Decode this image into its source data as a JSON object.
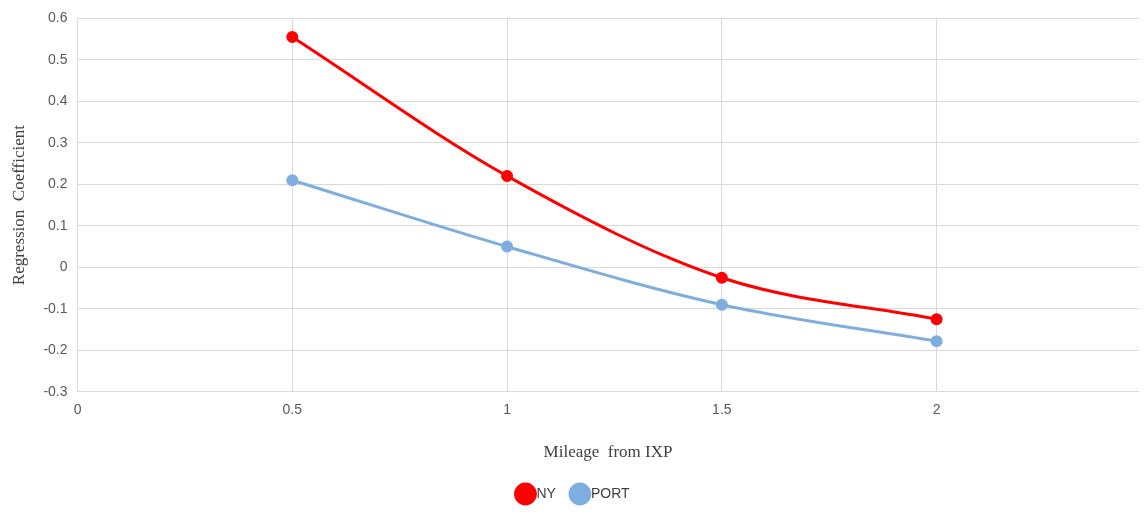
{
  "chart_data": {
    "type": "line",
    "xlabel": "Mileage  from IXP",
    "ylabel": "Regression  Coefficient",
    "x": [
      0.5,
      1,
      1.5,
      2
    ],
    "series": [
      {
        "name": "NY",
        "color": "#ff0000",
        "values": [
          0.555,
          0.22,
          -0.025,
          -0.125
        ]
      },
      {
        "name": "PORT",
        "color": "#7eaee0",
        "values": [
          0.21,
          0.05,
          -0.09,
          -0.178
        ]
      }
    ],
    "xlim": [
      0,
      2.47
    ],
    "xticks": [
      0,
      0.5,
      1,
      1.5,
      2
    ],
    "ylim": [
      -0.3,
      0.6
    ],
    "yticks": [
      -0.3,
      -0.2,
      -0.1,
      0,
      0.1,
      0.2,
      0.3,
      0.4,
      0.5,
      0.6
    ],
    "grid": true,
    "legend": "bottom",
    "marker": "circle",
    "line_style": "solid"
  }
}
